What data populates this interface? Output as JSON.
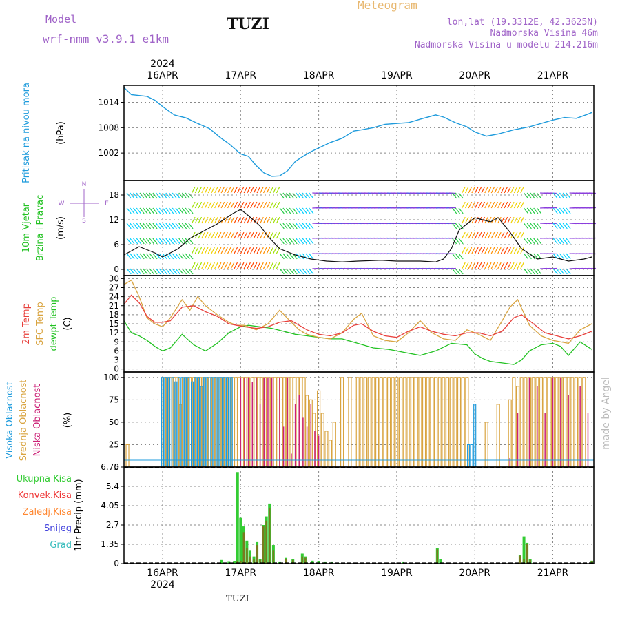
{
  "header": {
    "model_label": "Model",
    "model_name": "wrf-nmm_v3.9.1 e1km",
    "station": "TUZI",
    "title": "Meteogram",
    "coords": "lon,lat (19.3312E, 42.3625N)",
    "elevation": "Nadmorska Visina 46m",
    "model_elevation": "Nadmorska Visina u modelu 214.216m",
    "watermark": "made by Angel",
    "footer_station": "TUZI"
  },
  "colors": {
    "pressure": "#1e9bdc",
    "temp2m": "#e8403c",
    "sfc_temp": "#d9a440",
    "dewpoint": "#22c222",
    "high_cloud": "#1e9bdc",
    "mid_cloud": "#d9a440",
    "low_cloud": "#cc2277",
    "total_precip": "#33cc33",
    "conv_precip": "#ee3333",
    "frozen_precip": "#ff8833",
    "snow": "#4444dd",
    "hail": "#33bbbb",
    "model_text": "#a064c8",
    "title_text": "#e8b870"
  },
  "chart_data": [
    {
      "type": "line",
      "panel": "pressure",
      "title": "Pritisak na nivou mora",
      "ylabel": "(hPa)",
      "yticks": [
        "1014",
        "1008",
        "1002"
      ],
      "ylim": [
        995.5,
        1018.0
      ],
      "x_start_label": "2024",
      "date_ticks": [
        "16APR",
        "17APR",
        "18APR",
        "19APR",
        "20APR",
        "21APR"
      ],
      "series": [
        {
          "x": [
            -0.5,
            -0.4,
            -0.3,
            -0.2,
            -0.1,
            0.0,
            0.15,
            0.3,
            0.45,
            0.6,
            0.75,
            0.85,
            1.0,
            1.1,
            1.2,
            1.3,
            1.4,
            1.5,
            1.6,
            1.7,
            1.8,
            1.9,
            2.0,
            2.15,
            2.3,
            2.45,
            2.55,
            2.7,
            2.85,
            3.0,
            3.15,
            3.3,
            3.5,
            3.6,
            3.75,
            3.9,
            4.0,
            4.15,
            4.3,
            4.5,
            4.7,
            4.85,
            5.0,
            5.15,
            5.3,
            5.45,
            5.5
          ],
          "values": [
            1017.5,
            1015.8,
            1015.6,
            1015.4,
            1014.5,
            1013.0,
            1011.0,
            1010.3,
            1009.0,
            1007.8,
            1005.5,
            1004.2,
            1001.8,
            1001.2,
            999.0,
            997.3,
            996.5,
            996.6,
            997.8,
            1000.0,
            1001.2,
            1002.3,
            1003.2,
            1004.5,
            1005.5,
            1007.2,
            1007.5,
            1008.0,
            1008.8,
            1009.0,
            1009.2,
            1010.0,
            1011.0,
            1010.5,
            1009.2,
            1008.2,
            1007.0,
            1006.0,
            1006.5,
            1007.5,
            1008.2,
            1009.0,
            1009.8,
            1010.4,
            1010.2,
            1011.2,
            1011.6
          ]
        }
      ]
    },
    {
      "type": "line",
      "panel": "wind",
      "title": "10m Vjetar",
      "subtitle": "Brzina i Pravac",
      "ylabel": "(m/s)",
      "yticks": [
        "18",
        "12",
        "6",
        "0"
      ],
      "ylim": [
        -1.5,
        21.5
      ],
      "compass": {
        "north": "N",
        "south": "S",
        "west": "W",
        "east": "E"
      },
      "series": [
        {
          "x": [
            -0.5,
            -0.3,
            -0.1,
            0.0,
            0.2,
            0.35,
            0.5,
            0.7,
            0.9,
            1.0,
            1.1,
            1.25,
            1.35,
            1.5,
            1.7,
            1.9,
            2.1,
            2.3,
            2.5,
            2.8,
            3.0,
            3.3,
            3.5,
            3.6,
            3.7,
            3.8,
            3.9,
            4.0,
            4.1,
            4.2,
            4.3,
            4.45,
            4.6,
            4.8,
            5.0,
            5.2,
            5.4,
            5.5
          ],
          "values": [
            3.5,
            5.5,
            4.0,
            3.0,
            5.0,
            7.5,
            9.0,
            11.0,
            13.5,
            14.5,
            13.0,
            10.5,
            8.0,
            5.0,
            3.5,
            2.5,
            2.0,
            1.8,
            2.0,
            2.2,
            2.0,
            2.0,
            1.8,
            2.5,
            5.0,
            9.5,
            11.0,
            12.5,
            12.0,
            11.5,
            12.5,
            9.0,
            5.0,
            2.5,
            3.0,
            2.0,
            2.5,
            3.0
          ]
        }
      ]
    },
    {
      "type": "line",
      "panel": "temperature",
      "title": "2m Temp",
      "ylabel": "(C)",
      "yticks": [
        "30",
        "27",
        "24",
        "21",
        "18",
        "15",
        "12",
        "9",
        "6",
        "3",
        "0"
      ],
      "ylim": [
        -1,
        31
      ],
      "series": [
        {
          "name": "2m Temp",
          "x": [
            -0.5,
            -0.4,
            -0.3,
            -0.2,
            -0.1,
            0.0,
            0.1,
            0.25,
            0.4,
            0.55,
            0.7,
            0.85,
            0.95,
            1.05,
            1.2,
            1.35,
            1.5,
            1.65,
            1.75,
            1.85,
            2.0,
            2.15,
            2.3,
            2.45,
            2.55,
            2.7,
            2.85,
            3.0,
            3.15,
            3.3,
            3.45,
            3.6,
            3.75,
            3.9,
            4.05,
            4.2,
            4.35,
            4.5,
            4.6,
            4.75,
            4.9,
            5.05,
            5.2,
            5.35,
            5.5
          ],
          "values": [
            21.5,
            24.5,
            22.0,
            17.5,
            15.5,
            15.5,
            16.0,
            20.5,
            21.0,
            19.0,
            17.5,
            15.0,
            14.5,
            14.0,
            13.5,
            14.0,
            15.5,
            16.0,
            14.5,
            13.0,
            11.5,
            11.0,
            12.0,
            14.5,
            15.0,
            12.5,
            11.0,
            10.5,
            12.5,
            14.0,
            12.5,
            11.5,
            11.0,
            12.0,
            12.0,
            11.0,
            12.5,
            17.0,
            18.0,
            15.0,
            12.0,
            11.0,
            10.0,
            11.0,
            12.5
          ]
        },
        {
          "name": "SFC Temp",
          "x": [
            -0.5,
            -0.4,
            -0.3,
            -0.2,
            -0.1,
            0.0,
            0.1,
            0.25,
            0.35,
            0.45,
            0.55,
            0.7,
            0.85,
            0.95,
            1.05,
            1.2,
            1.35,
            1.5,
            1.65,
            1.75,
            1.85,
            2.0,
            2.15,
            2.3,
            2.45,
            2.55,
            2.7,
            2.85,
            3.0,
            3.15,
            3.3,
            3.45,
            3.6,
            3.75,
            3.9,
            4.05,
            4.2,
            4.35,
            4.45,
            4.55,
            4.7,
            4.85,
            5.0,
            5.2,
            5.35,
            5.5
          ],
          "values": [
            28.0,
            29.5,
            24.0,
            17.0,
            15.0,
            14.0,
            17.0,
            23.0,
            19.5,
            24.0,
            21.0,
            18.0,
            15.5,
            14.5,
            14.5,
            13.0,
            15.0,
            19.5,
            15.5,
            13.0,
            11.5,
            10.5,
            10.0,
            12.0,
            16.5,
            18.5,
            11.0,
            9.5,
            9.0,
            12.0,
            16.0,
            12.0,
            10.0,
            9.5,
            13.0,
            11.5,
            9.5,
            16.0,
            20.5,
            23.0,
            14.5,
            11.0,
            9.5,
            8.5,
            13.0,
            15.0
          ]
        },
        {
          "name": "dewpt Temp",
          "x": [
            -0.5,
            -0.4,
            -0.3,
            -0.2,
            -0.1,
            0.0,
            0.1,
            0.25,
            0.4,
            0.55,
            0.7,
            0.85,
            1.0,
            1.1,
            1.25,
            1.4,
            1.55,
            1.7,
            1.85,
            2.0,
            2.15,
            2.3,
            2.5,
            2.7,
            2.9,
            3.1,
            3.3,
            3.5,
            3.7,
            3.9,
            4.0,
            4.1,
            4.2,
            4.35,
            4.5,
            4.6,
            4.7,
            4.85,
            5.0,
            5.1,
            5.2,
            5.35,
            5.5
          ],
          "values": [
            16.0,
            12.0,
            11.0,
            9.5,
            7.5,
            6.0,
            7.0,
            11.5,
            8.0,
            6.0,
            8.5,
            12.0,
            14.0,
            14.5,
            14.0,
            13.5,
            12.5,
            11.5,
            11.0,
            10.5,
            10.0,
            10.0,
            8.5,
            7.0,
            6.5,
            5.5,
            4.5,
            6.0,
            8.5,
            8.0,
            5.0,
            3.5,
            2.5,
            2.0,
            1.5,
            3.0,
            6.0,
            8.0,
            8.5,
            7.5,
            4.5,
            9.0,
            6.5
          ]
        }
      ]
    },
    {
      "type": "bar",
      "panel": "clouds",
      "title": "Visoka Oblacnost",
      "ylabel": "(%)",
      "yticks": [
        "100",
        "75",
        "50",
        "25",
        "0"
      ],
      "ylim": [
        0,
        100
      ],
      "series": [
        {
          "name": "Visoka Oblacnost",
          "x": [
            0.0,
            0.04,
            0.08,
            0.13,
            0.17,
            0.21,
            0.25,
            0.29,
            0.33,
            0.38,
            0.42,
            0.46,
            0.5,
            0.54,
            0.58,
            0.63,
            0.67,
            0.71,
            0.75,
            0.79,
            0.83,
            0.88,
            3.92,
            3.96,
            4.0
          ],
          "values": [
            100,
            100,
            100,
            100,
            95,
            100,
            100,
            100,
            100,
            95,
            100,
            100,
            90,
            100,
            100,
            100,
            100,
            100,
            100,
            100,
            100,
            100,
            25,
            25,
            70
          ]
        },
        {
          "name": "Srednja Oblacnost",
          "x": [
            -0.45,
            0.02,
            0.06,
            0.1,
            0.15,
            0.19,
            0.23,
            0.27,
            0.31,
            0.35,
            0.4,
            0.44,
            0.48,
            0.52,
            0.56,
            0.6,
            0.65,
            0.69,
            0.73,
            0.77,
            0.81,
            0.85,
            0.9,
            0.94,
            0.98,
            1.02,
            1.06,
            1.1,
            1.15,
            1.19,
            1.23,
            1.27,
            1.31,
            1.35,
            1.4,
            1.44,
            1.48,
            1.52,
            1.56,
            1.6,
            1.65,
            1.69,
            1.73,
            1.77,
            1.81,
            1.85,
            1.9,
            1.94,
            2.0,
            2.05,
            2.1,
            2.15,
            2.2,
            2.3,
            2.4,
            2.5,
            2.55,
            2.6,
            2.65,
            2.7,
            2.75,
            2.8,
            2.85,
            2.9,
            2.95,
            3.0,
            3.05,
            3.1,
            3.15,
            3.2,
            3.25,
            3.3,
            3.35,
            3.4,
            3.45,
            3.5,
            3.55,
            3.6,
            3.65,
            3.7,
            3.75,
            3.8,
            3.85,
            3.9,
            4.15,
            4.3,
            4.45,
            4.5,
            4.55,
            4.6,
            4.65,
            4.7,
            4.75,
            4.8,
            4.85,
            4.9,
            4.95,
            5.0,
            5.05,
            5.1,
            5.15,
            5.2,
            5.25,
            5.3,
            5.35,
            5.4
          ],
          "values": [
            25,
            100,
            100,
            100,
            100,
            100,
            70,
            100,
            100,
            100,
            100,
            100,
            100,
            100,
            100,
            100,
            100,
            100,
            100,
            100,
            100,
            100,
            100,
            100,
            100,
            100,
            100,
            100,
            100,
            100,
            100,
            100,
            100,
            100,
            100,
            100,
            100,
            100,
            100,
            100,
            100,
            100,
            100,
            100,
            100,
            80,
            75,
            60,
            85,
            60,
            40,
            30,
            50,
            100,
            100,
            100,
            100,
            100,
            100,
            100,
            100,
            100,
            100,
            100,
            100,
            100,
            100,
            100,
            100,
            100,
            100,
            100,
            100,
            100,
            100,
            100,
            100,
            100,
            100,
            100,
            100,
            100,
            100,
            100,
            50,
            70,
            75,
            100,
            90,
            100,
            100,
            100,
            100,
            100,
            100,
            100,
            100,
            100,
            100,
            100,
            100,
            100,
            100,
            100,
            100,
            100
          ]
        },
        {
          "name": "Niska Oblacnost",
          "x": [
            1.0,
            1.05,
            1.1,
            1.15,
            1.2,
            1.25,
            1.3,
            1.35,
            1.4,
            1.5,
            1.55,
            1.6,
            1.65,
            1.7,
            1.75,
            1.8,
            1.85,
            1.9,
            1.95,
            2.0,
            4.45,
            4.55,
            4.7,
            4.8,
            4.9,
            5.0,
            5.1,
            5.2,
            5.35,
            5.45
          ],
          "values": [
            100,
            100,
            100,
            95,
            100,
            70,
            100,
            100,
            100,
            100,
            45,
            100,
            15,
            70,
            80,
            55,
            45,
            70,
            40,
            35,
            10,
            60,
            100,
            90,
            60,
            100,
            100,
            80,
            90,
            60
          ]
        }
      ]
    },
    {
      "type": "bar",
      "panel": "precipitation",
      "title": "1hr Precip (mm)",
      "ylabel": "1hr Precip (mm)",
      "yticks": [
        "6.75",
        "5.4",
        "4.05",
        "2.7",
        "1.35",
        "0"
      ],
      "ylim": [
        0,
        6.75
      ],
      "legend": [
        "Ukupna Kisa",
        "Konvek.Kisa",
        "Zaledj.Kisa",
        "Snijeg",
        "Grad"
      ],
      "series": [
        {
          "name": "Ukupna Kisa",
          "x": [
            0.75,
            0.85,
            0.92,
            0.96,
            1.0,
            1.04,
            1.08,
            1.12,
            1.17,
            1.21,
            1.25,
            1.29,
            1.33,
            1.37,
            1.42,
            1.5,
            1.58,
            1.67,
            1.79,
            1.83,
            1.92,
            2.0,
            2.08,
            2.17,
            2.25,
            3.08,
            3.52,
            3.56,
            4.58,
            4.63,
            4.67,
            4.71,
            5.5
          ],
          "values": [
            0.25,
            0.12,
            0.15,
            6.4,
            3.2,
            2.6,
            1.6,
            0.9,
            0.5,
            1.5,
            0.3,
            2.7,
            3.3,
            4.2,
            1.3,
            0.1,
            0.4,
            0.3,
            0.7,
            0.5,
            0.2,
            0.15,
            0.1,
            0.1,
            0.05,
            0.1,
            1.1,
            0.3,
            0.6,
            1.9,
            1.45,
            0.3,
            0.2
          ]
        },
        {
          "name": "Konvek.Kisa",
          "x": [
            0.96,
            1.0,
            1.04,
            1.08,
            1.12,
            1.17,
            1.21,
            1.25,
            1.29,
            1.33,
            1.37,
            1.42,
            1.5,
            1.58,
            1.67,
            1.79,
            1.83,
            3.52,
            4.58,
            4.63,
            4.67,
            4.71,
            5.5
          ],
          "values": [
            0.2,
            0.2,
            2.2,
            1.1,
            0.5,
            0.3,
            1.3,
            0.25,
            2.6,
            3.0,
            3.9,
            0.9,
            0.05,
            0.3,
            0.25,
            0.5,
            0.4,
            1.0,
            0.55,
            0.3,
            1.35,
            0.25,
            0.15
          ]
        }
      ]
    }
  ]
}
